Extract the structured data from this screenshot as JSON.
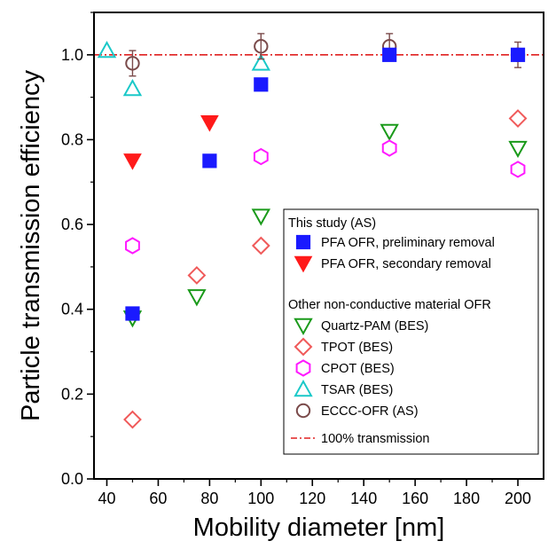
{
  "chart_data": {
    "type": "scatter",
    "title": "",
    "xlabel": "Mobility diameter [nm]",
    "ylabel": "Particle transmission efficiency",
    "xlim": [
      35,
      210
    ],
    "ylim": [
      0.0,
      1.1
    ],
    "xticks": [
      "40",
      "60",
      "80",
      "100",
      "120",
      "140",
      "160",
      "180",
      "200"
    ],
    "yticks": [
      "0.0",
      "0.2",
      "0.4",
      "0.6",
      "0.8",
      "1.0"
    ],
    "grid": false,
    "legend_position": "lower-right",
    "reference_line": {
      "y": 1.0,
      "label": "100% transmission",
      "color": "#e02020",
      "style": "dash-dot"
    },
    "legend": {
      "group1_title": "This study (AS)",
      "group2_title": "Other non-conductive material OFR"
    },
    "series": [
      {
        "name": "PFA OFR, preliminary removal",
        "marker": "square",
        "filled": true,
        "color": "#1a1aff",
        "points": [
          {
            "x": 50,
            "y": 0.39
          },
          {
            "x": 80,
            "y": 0.75
          },
          {
            "x": 100,
            "y": 0.93
          },
          {
            "x": 150,
            "y": 1.0
          },
          {
            "x": 200,
            "y": 1.0
          }
        ]
      },
      {
        "name": "PFA OFR, secondary removal",
        "marker": "triangle-down",
        "filled": true,
        "color": "#ff1a1a",
        "points": [
          {
            "x": 50,
            "y": 0.75
          },
          {
            "x": 80,
            "y": 0.84
          }
        ]
      },
      {
        "name": "Quartz-PAM (BES)",
        "marker": "triangle-down",
        "filled": false,
        "color": "#1a9a1a",
        "points": [
          {
            "x": 50,
            "y": 0.38
          },
          {
            "x": 75,
            "y": 0.43
          },
          {
            "x": 100,
            "y": 0.62
          },
          {
            "x": 150,
            "y": 0.82
          },
          {
            "x": 200,
            "y": 0.78
          }
        ]
      },
      {
        "name": "TPOT (BES)",
        "marker": "diamond",
        "filled": false,
        "color": "#f05a5a",
        "points": [
          {
            "x": 50,
            "y": 0.14
          },
          {
            "x": 75,
            "y": 0.48
          },
          {
            "x": 100,
            "y": 0.55
          },
          {
            "x": 200,
            "y": 0.85
          }
        ]
      },
      {
        "name": "CPOT (BES)",
        "marker": "hexagon",
        "filled": false,
        "color": "#ff1aff",
        "points": [
          {
            "x": 50,
            "y": 0.55
          },
          {
            "x": 100,
            "y": 0.76
          },
          {
            "x": 150,
            "y": 0.78
          },
          {
            "x": 200,
            "y": 0.73
          }
        ]
      },
      {
        "name": "TSAR (BES)",
        "marker": "triangle-up",
        "filled": false,
        "color": "#1ac8c8",
        "points": [
          {
            "x": 40,
            "y": 1.01
          },
          {
            "x": 50,
            "y": 0.92
          },
          {
            "x": 100,
            "y": 0.98
          }
        ]
      },
      {
        "name": "ECCC-OFR (AS)",
        "marker": "circle",
        "filled": false,
        "color": "#7a4a4a",
        "points": [
          {
            "x": 50,
            "y": 0.98,
            "err": 0.03
          },
          {
            "x": 100,
            "y": 1.02,
            "err": 0.03
          },
          {
            "x": 150,
            "y": 1.02,
            "err": 0.03
          },
          {
            "x": 200,
            "y": 1.0,
            "err": 0.03
          }
        ]
      }
    ]
  }
}
